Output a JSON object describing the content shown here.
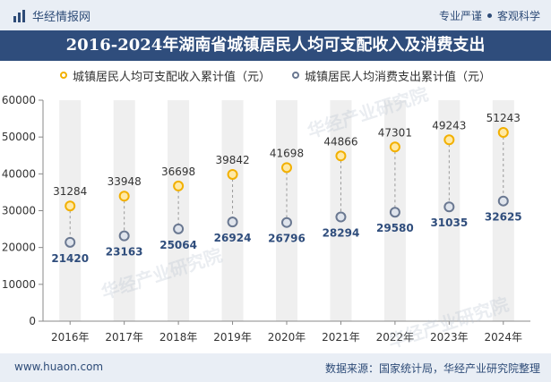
{
  "header": {
    "brand": "华经情报网",
    "slogan_left": "专业严谨",
    "slogan_right": "客观科学"
  },
  "footer": {
    "site": "www.huaon.com",
    "source": "数据来源：国家统计局，华经产业研究院整理"
  },
  "watermarks": [
    "华经产业研究院",
    "华经产业研究院",
    "华经产业研究院"
  ],
  "colors": {
    "income": "#f2b000",
    "expense": "#6a7891",
    "title_bg": "#2f4d7c",
    "band": "#efefef"
  },
  "chart_data": {
    "type": "line",
    "title": "2016-2024年湖南省城镇居民人均可支配收入及消费支出",
    "categories": [
      "2016年",
      "2017年",
      "2018年",
      "2019年",
      "2020年",
      "2021年",
      "2022年",
      "2023年",
      "2024年"
    ],
    "series": [
      {
        "name": "城镇居民人均可支配收入累计值（元）",
        "values": [
          31284,
          33948,
          36698,
          39842,
          41698,
          44866,
          47301,
          49243,
          51243
        ]
      },
      {
        "name": "城镇居民人均消费支出累计值（元）",
        "values": [
          21420,
          23163,
          25064,
          26924,
          26796,
          28294,
          29580,
          31035,
          32625
        ]
      }
    ],
    "yticks": [
      0,
      10000,
      20000,
      30000,
      40000,
      50000,
      60000
    ],
    "ylim": [
      0,
      60000
    ],
    "xlabel": "",
    "ylabel": "",
    "legend": "top-center"
  }
}
